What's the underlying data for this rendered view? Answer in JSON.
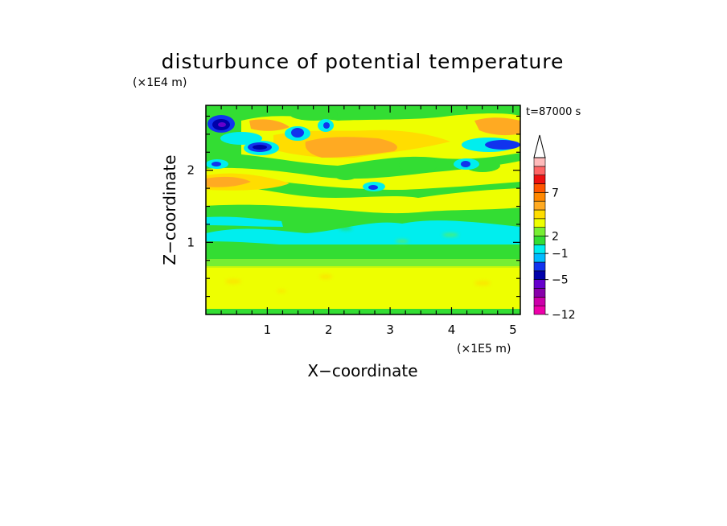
{
  "chart_data": {
    "type": "heatmap",
    "title": "disturbunce of potential temperature",
    "time_label": "t=87000 s",
    "xlabel": "X−coordinate",
    "ylabel": "Z−coordinate",
    "x_unit": "(×1E5 m)",
    "y_unit": "(×1E4 m)",
    "xlim": [
      0,
      5.12
    ],
    "ylim": [
      0,
      2.9
    ],
    "x_ticks": [
      "1",
      "2",
      "3",
      "4",
      "5"
    ],
    "y_ticks": [
      "1",
      "2"
    ],
    "grid": false,
    "colorbar": {
      "levels": [
        -12,
        -10,
        -8,
        -6,
        -5,
        -4,
        -2,
        -1,
        1,
        2,
        3,
        4,
        5,
        6,
        7,
        8,
        9,
        10
      ],
      "tick_labels": [
        "7",
        "2",
        "−1",
        "−5",
        "−12"
      ],
      "colors": [
        "#ee00aa",
        "#cc00aa",
        "#8800aa",
        "#6600cc",
        "#0000aa",
        "#1133ee",
        "#00bbff",
        "#00eeee",
        "#33dd33",
        "#77ee33",
        "#eeff00",
        "#ffdd00",
        "#ffaa22",
        "#ff8800",
        "#ff5500",
        "#ee1111",
        "#ff6666",
        "#ffbbbb"
      ],
      "extend": "max"
    }
  }
}
